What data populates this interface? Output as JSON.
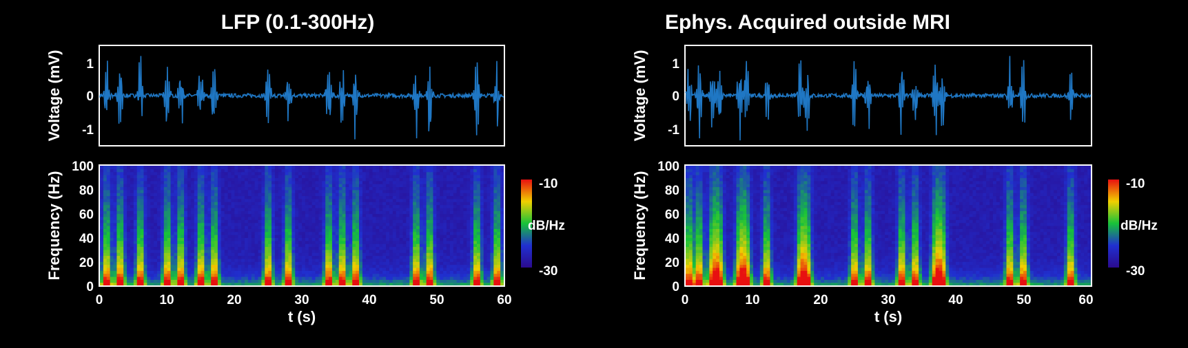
{
  "chart_data": [
    {
      "type": "line",
      "title": "LFP (0.1-300Hz)",
      "ylabel": "Voltage (mV)",
      "xlim": [
        0,
        60
      ],
      "ylim": [
        -1.5,
        1.5
      ],
      "yticks": [
        1,
        0,
        -1
      ],
      "line_color": "#1f77c4",
      "burst_times_s": [
        1,
        3,
        6,
        10,
        12,
        15,
        17,
        25,
        28,
        34,
        36,
        38,
        47,
        49,
        56,
        59
      ]
    },
    {
      "type": "heatmap",
      "ylabel": "Frequency (Hz)",
      "xlabel": "t (s)",
      "xlim": [
        0,
        60
      ],
      "ylim": [
        0,
        100
      ],
      "xticks": [
        0,
        10,
        20,
        30,
        40,
        50,
        60
      ],
      "yticks": [
        0,
        20,
        40,
        60,
        80,
        100
      ],
      "colorbar": {
        "label": "dB/Hz",
        "max_label": "-10",
        "min_label": "-30",
        "range": [
          -30,
          -10
        ]
      }
    },
    {
      "type": "line",
      "title": "Ephys. Acquired outside MRI",
      "ylabel": "Voltage (mV)",
      "xlim": [
        0,
        60
      ],
      "ylim": [
        -1.5,
        1.5
      ],
      "yticks": [
        1,
        0,
        -1
      ],
      "line_color": "#1f77c4",
      "burst_times_s": [
        0.5,
        2,
        4,
        5,
        8,
        9,
        12,
        17,
        18,
        25,
        27,
        32,
        34,
        37,
        38,
        48,
        50,
        57
      ]
    },
    {
      "type": "heatmap",
      "ylabel": "Frequency (Hz)",
      "xlabel": "t (s)",
      "xlim": [
        0,
        60
      ],
      "ylim": [
        0,
        100
      ],
      "xticks": [
        0,
        10,
        20,
        30,
        40,
        50,
        60
      ],
      "yticks": [
        0,
        20,
        40,
        60,
        80,
        100
      ],
      "colorbar": {
        "label": "dB/Hz",
        "max_label": "-10",
        "min_label": "-30",
        "range": [
          -30,
          -10
        ]
      }
    }
  ]
}
